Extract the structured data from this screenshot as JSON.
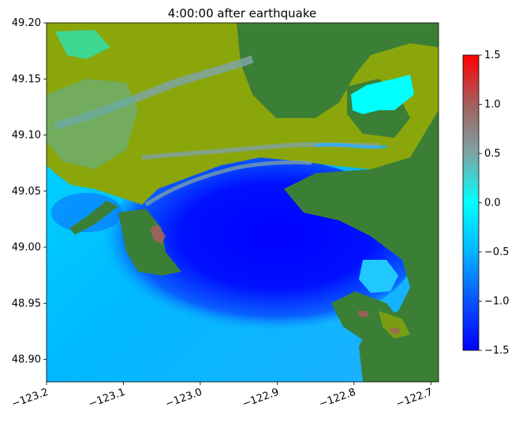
{
  "chart_data": [
    {
      "type": "heatmap",
      "title": "4:00:00 after earthquake",
      "xlim": [
        -123.2,
        -122.69
      ],
      "ylim": [
        48.88,
        49.2
      ],
      "xticks": [
        -123.2,
        -123.1,
        -123.0,
        -122.9,
        -122.8,
        -122.7
      ],
      "xtick_labels": [
        "−123.2",
        "−123.1",
        "−123.0",
        "−122.9",
        "−122.8",
        "−122.7"
      ],
      "yticks": [
        48.9,
        48.95,
        49.0,
        49.05,
        49.1,
        49.15,
        49.2
      ],
      "ytick_labels": [
        "48.90",
        "48.95",
        "49.00",
        "49.05",
        "49.10",
        "49.15",
        "49.20"
      ],
      "land_colors": {
        "lowland": "#8aa60a",
        "upland": "#3b7f37"
      },
      "water_colormap": [
        "#0000ff",
        "#0a54ff",
        "#00b2ff",
        "#00ffff",
        "#7fa3a3",
        "#a36060",
        "#ff0000"
      ],
      "colorbar": {
        "range": [
          -1.5,
          1.5
        ],
        "ticks": [
          -1.5,
          -1.0,
          -0.5,
          0.0,
          0.5,
          1.0,
          1.5
        ],
        "tick_labels": [
          "−1.5",
          "−1.0",
          "−0.5",
          "0.0",
          "0.5",
          "1.0",
          "1.5"
        ]
      }
    }
  ]
}
